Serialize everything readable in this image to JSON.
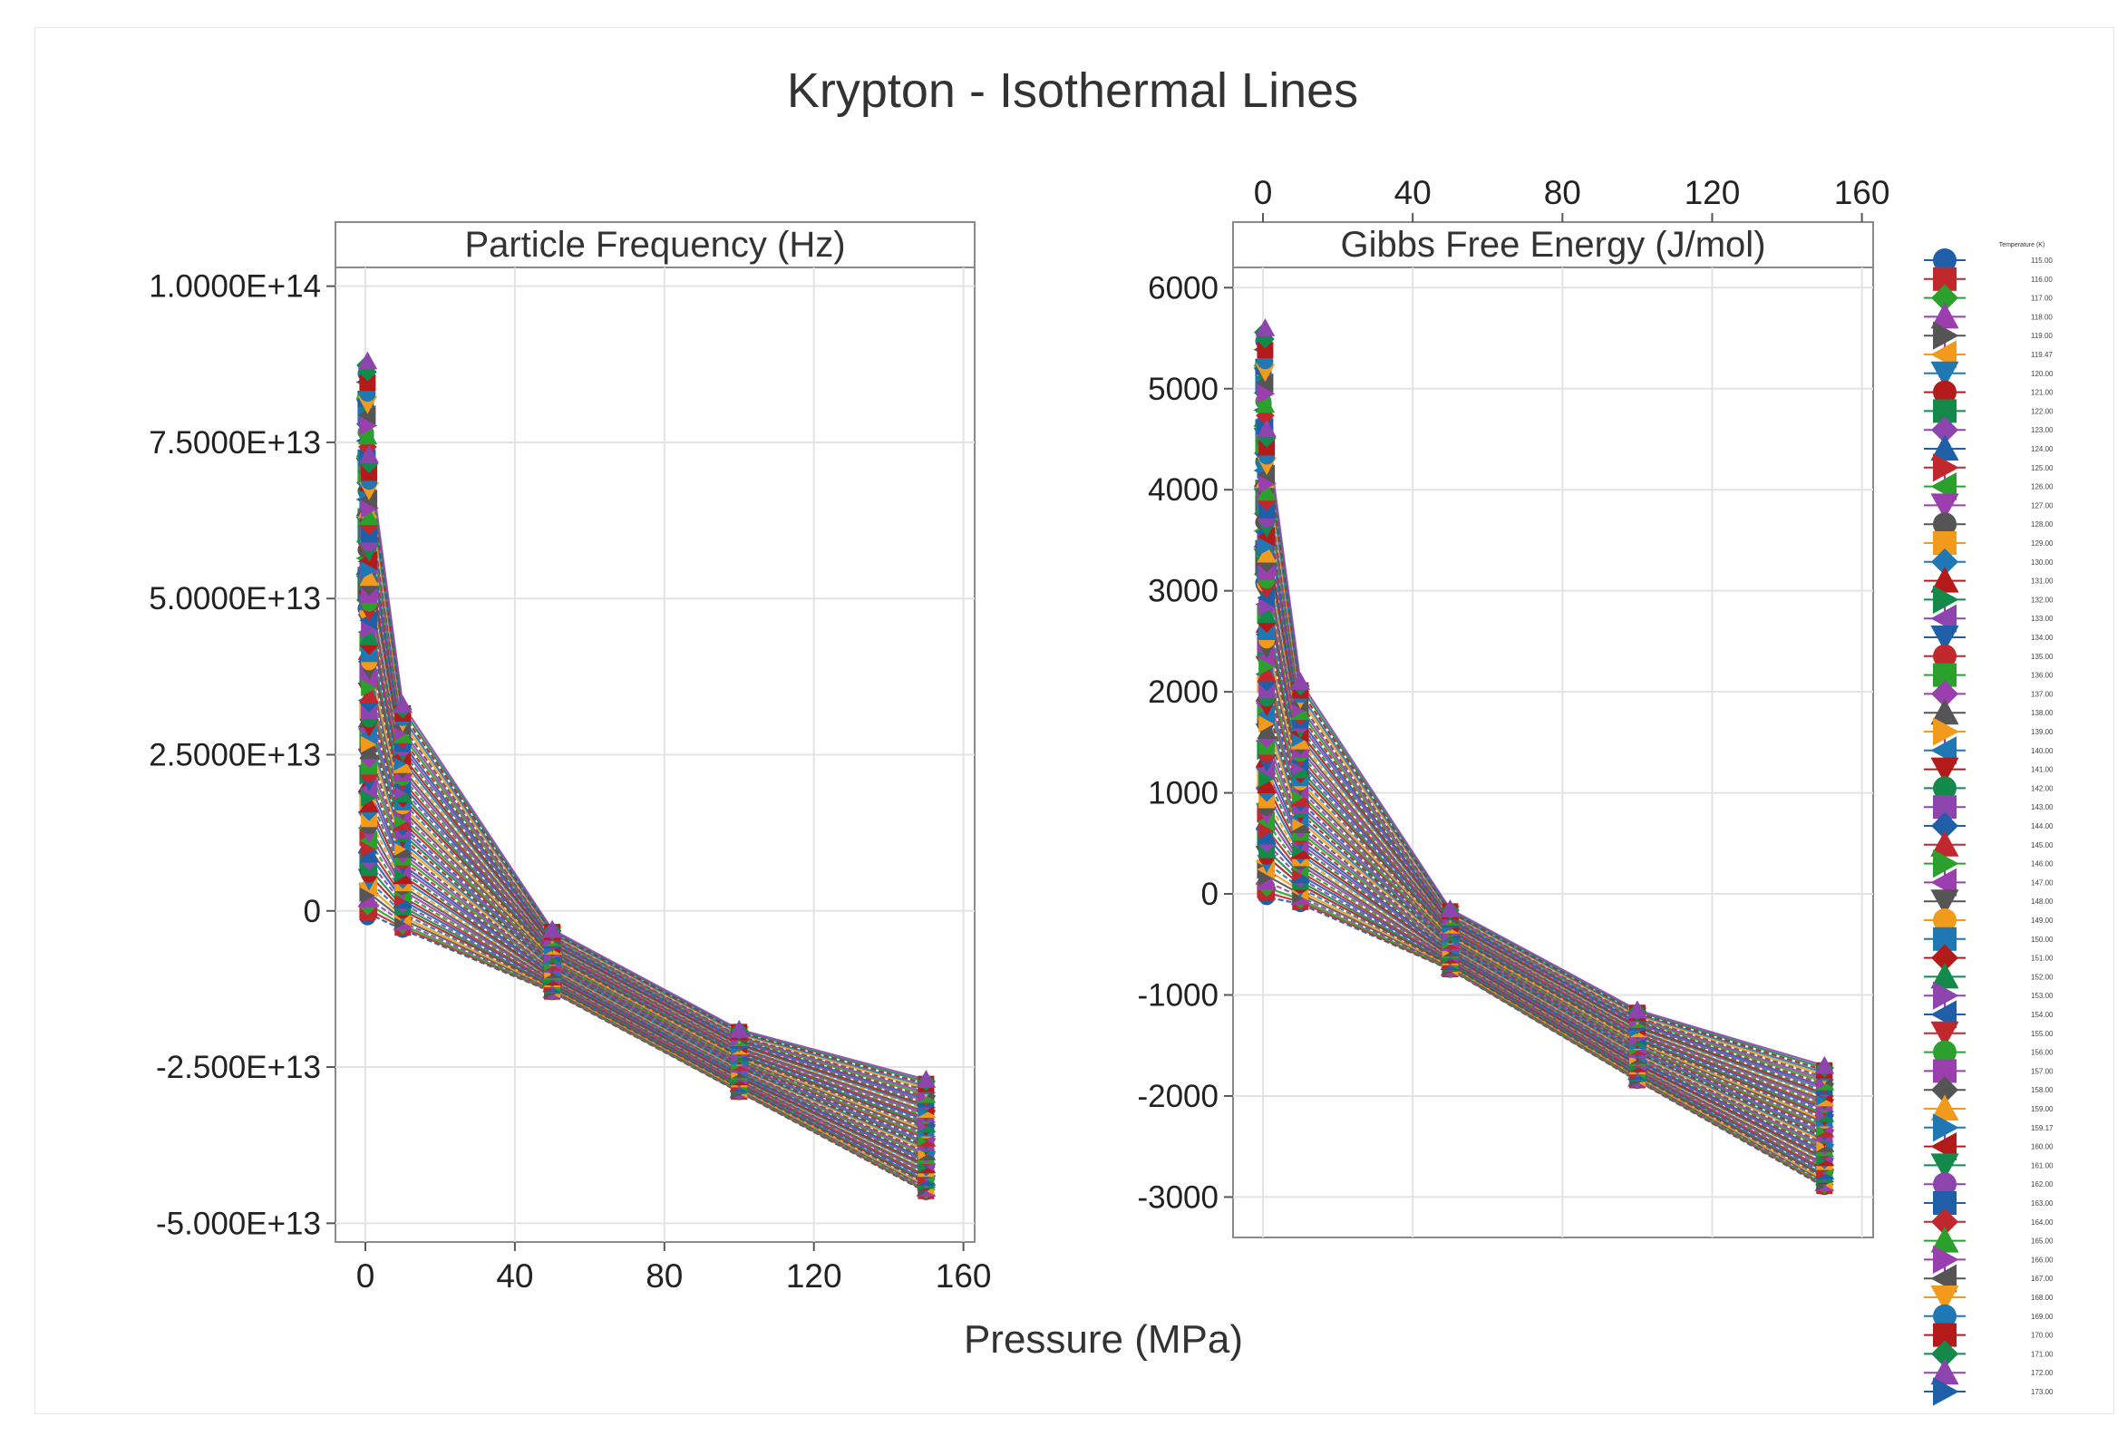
{
  "chart_data": {
    "type": "line",
    "title": "Krypton - Isothermal Lines",
    "xlabel": "Pressure (MPa)",
    "xlim": [
      -8,
      163
    ],
    "xticks": [
      0,
      40,
      80,
      120,
      160
    ],
    "grid": true,
    "panels": [
      {
        "title": "Particle Frequency (Hz)",
        "ylim": [
          -53000000000000.0,
          103000000000000.0
        ],
        "yticks": [
          100000000000000.0,
          75000000000000.0,
          50000000000000.0,
          25000000000000.0,
          0,
          -25000000000000.0,
          -50000000000000.0
        ],
        "ytick_labels": [
          "1.0000E+14",
          "7.5000E+13",
          "5.0000E+13",
          "2.5000E+13",
          "0",
          "-2.500E+13",
          "-5.000E+13"
        ],
        "x_axis_position": "bottom",
        "x": [
          0.1,
          1,
          10,
          50,
          100,
          150
        ],
        "low_curve": [
          -1000000000000.0,
          -500000000000.0,
          -3000000000000.0,
          -13000000000000.0,
          -29000000000000.0,
          -45000000000000.0
        ],
        "high_curve": [
          88000000000000.0,
          73000000000000.0,
          33000000000000.0,
          -3000000000000.0,
          -19000000000000.0,
          -27000000000000.0
        ]
      },
      {
        "title": "Gibbs Free Energy (J/mol)",
        "ylim": [
          -3400,
          6200
        ],
        "yticks": [
          6000,
          5000,
          4000,
          3000,
          2000,
          1000,
          0,
          -1000,
          -2000,
          -3000
        ],
        "ytick_labels": [
          "6000",
          "5000",
          "4000",
          "3000",
          "2000",
          "1000",
          "0",
          "-1000",
          "-2000",
          "-3000"
        ],
        "x_axis_position": "top",
        "x": [
          0.1,
          1,
          10,
          50,
          100,
          150
        ],
        "low_curve": [
          -10,
          -30,
          -100,
          -750,
          -1850,
          -2900
        ],
        "high_curve": [
          5600,
          4600,
          2100,
          -150,
          -1150,
          -1700
        ]
      }
    ],
    "legend": {
      "placement": "right",
      "title": "Temperature (K)",
      "entries": [
        "115.00",
        "116.00",
        "117.00",
        "118.00",
        "119.00",
        "119.47",
        "120.00",
        "121.00",
        "122.00",
        "123.00",
        "124.00",
        "125.00",
        "126.00",
        "127.00",
        "128.00",
        "129.00",
        "130.00",
        "131.00",
        "132.00",
        "133.00",
        "134.00",
        "135.00",
        "136.00",
        "137.00",
        "138.00",
        "139.00",
        "140.00",
        "141.00",
        "142.00",
        "143.00",
        "144.00",
        "145.00",
        "146.00",
        "147.00",
        "148.00",
        "149.00",
        "150.00",
        "151.00",
        "152.00",
        "153.00",
        "154.00",
        "155.00",
        "156.00",
        "157.00",
        "158.00",
        "159.00",
        "159.17",
        "160.00",
        "161.00",
        "162.00",
        "163.00",
        "164.00",
        "165.00",
        "166.00",
        "167.00",
        "168.00",
        "169.00",
        "170.00",
        "171.00",
        "172.00",
        "173.00"
      ]
    },
    "series_colors": [
      "#1f5fa8",
      "#c0282d",
      "#2ca02c",
      "#9b3fae",
      "#555555",
      "#f29a1c",
      "#1f77b4",
      "#b31b1b",
      "#138a4a",
      "#8e44ad"
    ],
    "marker_shapes": [
      "circle",
      "square",
      "diamond",
      "triangle-up",
      "triangle-right",
      "triangle-left",
      "triangle-down"
    ]
  }
}
